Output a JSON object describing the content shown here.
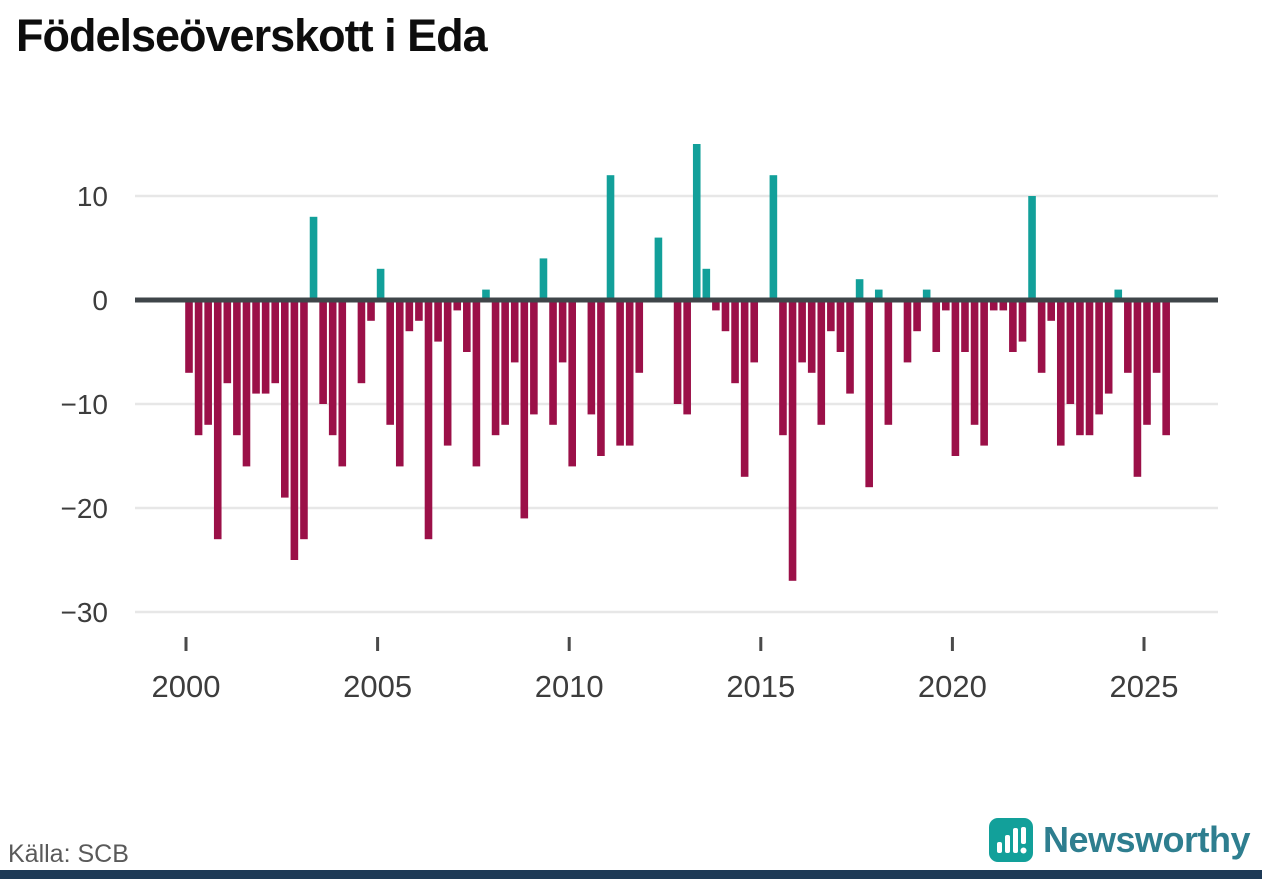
{
  "title": "Födelseöverskott i Eda",
  "source": "Källa: SCB",
  "brand": {
    "name": "Newsworthy",
    "icon": "bar-chart-exclamation-icon",
    "icon_color": "#12a09a",
    "text_color": "#2e7e8f"
  },
  "colors": {
    "positive": "#12a09a",
    "negative": "#9b1048",
    "zero_line": "#3f4549",
    "gridline": "#e7e7e7",
    "tick": "#4a4a4a",
    "axis_text": "#3d3d3d",
    "footer_strip": "#1e3a56"
  },
  "chart_data": {
    "type": "bar",
    "title": "Födelseöverskott i Eda",
    "xlabel": "",
    "ylabel": "",
    "frequency": "quarterly",
    "x_start": "2000Q1",
    "x_end": "2025Q3",
    "ylim": [
      -30,
      16
    ],
    "grid": "horizontal",
    "values": [
      -7,
      -13,
      -12,
      -23,
      -8,
      -13,
      -16,
      -9,
      -9,
      -8,
      -19,
      -25,
      -23,
      8,
      -10,
      -13,
      -16,
      0,
      -8,
      -2,
      3,
      -12,
      -16,
      -3,
      -2,
      -23,
      -4,
      -14,
      -1,
      -5,
      -16,
      1,
      -13,
      -12,
      -6,
      -21,
      -11,
      4,
      -12,
      -6,
      -16,
      0,
      -11,
      -15,
      12,
      -14,
      -14,
      -7,
      0,
      6,
      0,
      -10,
      -11,
      15,
      3,
      -1,
      -3,
      -8,
      -17,
      -6,
      0,
      12,
      -13,
      -27,
      -6,
      -7,
      -12,
      -3,
      -5,
      -9,
      2,
      -18,
      1,
      -12,
      0,
      -6,
      -3,
      1,
      -5,
      -1,
      -15,
      -5,
      -12,
      -14,
      -1,
      -1,
      -5,
      -4,
      10,
      -7,
      -2,
      -14,
      -10,
      -13,
      -13,
      -11,
      -9,
      1,
      -7,
      -17,
      -12,
      -7,
      -13
    ],
    "yticks": [
      {
        "label": "10",
        "value": 10
      },
      {
        "label": "0",
        "value": 0
      },
      {
        "label": "−10",
        "value": -10
      },
      {
        "label": "−20",
        "value": -20
      },
      {
        "label": "−30",
        "value": -30
      }
    ],
    "xticks": [
      {
        "label": "2000",
        "year": 2000
      },
      {
        "label": "2005",
        "year": 2005
      },
      {
        "label": "2010",
        "year": 2010
      },
      {
        "label": "2015",
        "year": 2015
      },
      {
        "label": "2020",
        "year": 2020
      },
      {
        "label": "2025",
        "year": 2025
      }
    ],
    "legend": "none"
  },
  "layout_hint": {
    "start_year": 2000,
    "start_quarter": 1
  }
}
